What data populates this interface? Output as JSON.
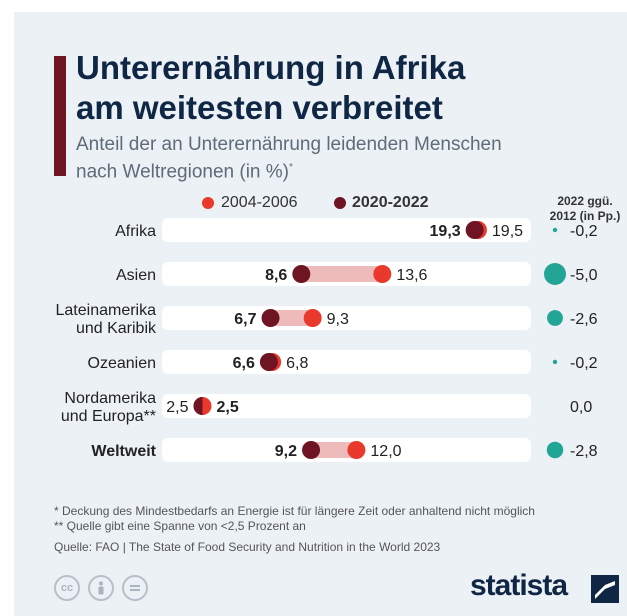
{
  "title": {
    "line1": "Unterernährung in Afrika",
    "line2": "am weitesten verbreitet"
  },
  "subtitle": {
    "line1": "Anteil der an Unterernährung leidenden Menschen",
    "line2": "nach Weltregionen (in %)",
    "marker": "*"
  },
  "legend": {
    "old": "2004-2006",
    "new": "2020-2022"
  },
  "change_header": {
    "line1": "2022 ggü.",
    "line2": "2012 (in Pp.)"
  },
  "colors": {
    "old_dot": "#e8392c",
    "new_dot": "#6e1423",
    "bar_bg": "#ffffff",
    "bubble": "#23a596",
    "title": "#0f2744",
    "accent": "#6e1423",
    "background": "#ecf1f6"
  },
  "chart_data": {
    "type": "dumbbell",
    "unit": "%",
    "xlim": [
      0,
      25
    ],
    "rows": [
      {
        "label": [
          "Afrika"
        ],
        "old": 19.5,
        "new": 19.3,
        "old_text": "19,5",
        "new_text": "19,3",
        "change": -0.2,
        "change_text": "-0,2",
        "bold_label": false
      },
      {
        "label": [
          "Asien"
        ],
        "old": 13.6,
        "new": 8.6,
        "old_text": "13,6",
        "new_text": "8,6",
        "change": -5.0,
        "change_text": "-5,0",
        "bold_label": false
      },
      {
        "label": [
          "Lateinamerika",
          "und Karibik"
        ],
        "old": 9.3,
        "new": 6.7,
        "old_text": "9,3",
        "new_text": "6,7",
        "change": -2.6,
        "change_text": "-2,6",
        "bold_label": false
      },
      {
        "label": [
          "Ozeanien"
        ],
        "old": 6.8,
        "new": 6.6,
        "old_text": "6,8",
        "new_text": "6,6",
        "change": -0.2,
        "change_text": "-0,2",
        "bold_label": false
      },
      {
        "label": [
          "Nordamerika",
          "und Europa**"
        ],
        "old": 2.5,
        "new": 2.5,
        "old_text": "2,5",
        "new_text": "2,5",
        "change": 0.0,
        "change_text": "0,0",
        "bold_label": false
      },
      {
        "label": [
          "Weltweit"
        ],
        "old": 12.0,
        "new": 9.2,
        "old_text": "12,0",
        "new_text": "9,2",
        "change": -2.8,
        "change_text": "-2,8",
        "bold_label": true
      }
    ]
  },
  "footnotes": [
    "*   Deckung des Mindestbedarfs an Energie ist für längere Zeit oder anhaltend nicht möglich",
    "** Quelle gibt eine Spanne von <2,5 Prozent an"
  ],
  "source": "Quelle: FAO | The State of Food Security and Nutrition in the World 2023",
  "license_icons": [
    "cc-icon",
    "attribution-icon",
    "no-derivatives-icon"
  ],
  "brand": "statista"
}
